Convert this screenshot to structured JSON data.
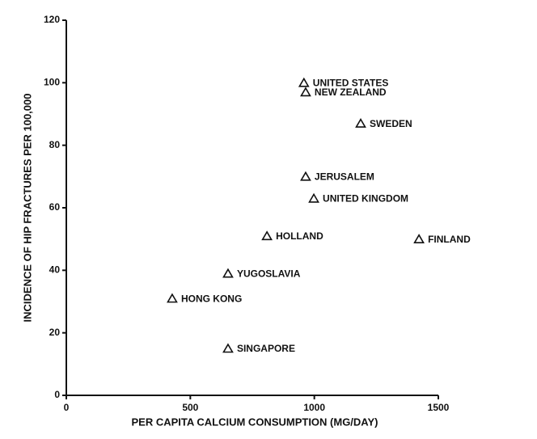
{
  "chart_data": {
    "type": "scatter",
    "x_label": "PER CAPITA CALCIUM CONSUMPTION (MG/DAY)",
    "y_label": "INCIDENCE OF HIP FRACTURES PER 100,000",
    "labels": [
      "UNITED STATES",
      "NEW ZEALAND",
      "SWEDEN",
      "JERUSALEM",
      "UNITED KINGDOM",
      "HOLLAND",
      "FINLAND",
      "YUGOSLAVIA",
      "HONG KONG",
      "SINGAPORE"
    ],
    "x": [
      958,
      965,
      1187,
      965,
      998,
      809,
      1422,
      652,
      427,
      652
    ],
    "values": [
      100,
      97,
      87,
      70,
      63,
      51,
      50,
      39,
      31,
      15
    ],
    "color": "#111111",
    "xlim": [
      0,
      1500
    ],
    "xticks": [
      0,
      500,
      1000,
      1500
    ],
    "ylim": [
      0,
      120
    ],
    "yticks": [
      0,
      20,
      40,
      60,
      80,
      100,
      120
    ],
    "grid": false
  }
}
